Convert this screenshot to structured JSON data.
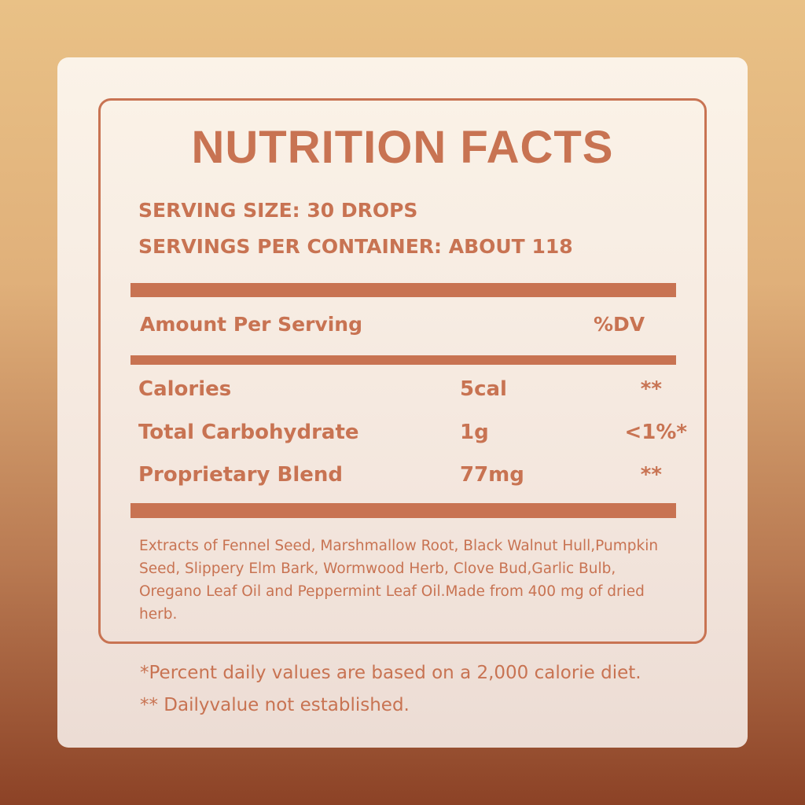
{
  "title": "NUTRITION FACTS",
  "serving_size": "SERVING SIZE: 30 DROPS",
  "servings_per_container": "SERVINGS PER CONTAINER: ABOUT 118",
  "header": {
    "amount": "Amount Per Serving",
    "dv": "%DV"
  },
  "rows": [
    {
      "name": "Calories",
      "amount": "5cal",
      "dv": "**"
    },
    {
      "name": "Total Carbohydrate",
      "amount": "1g",
      "dv": "<1%*"
    },
    {
      "name": "Proprietary Blend",
      "amount": "77mg",
      "dv": "**"
    }
  ],
  "ingredients": "Extracts of Fennel Seed, Marshmallow Root, Black Walnut Hull,Pumpkin Seed, Slippery Elm Bark, Wormwood Herb, Clove Bud,Garlic Bulb, Oregano Leaf Oil and Peppermint Leaf Oil.Made from 400 mg of dried herb.",
  "footnotes": [
    "*Percent daily values are based on a 2,000 calorie diet.",
    "** Dailyvalue not established."
  ],
  "colors": {
    "accent": "#c87352",
    "card": "#faf1e6"
  }
}
